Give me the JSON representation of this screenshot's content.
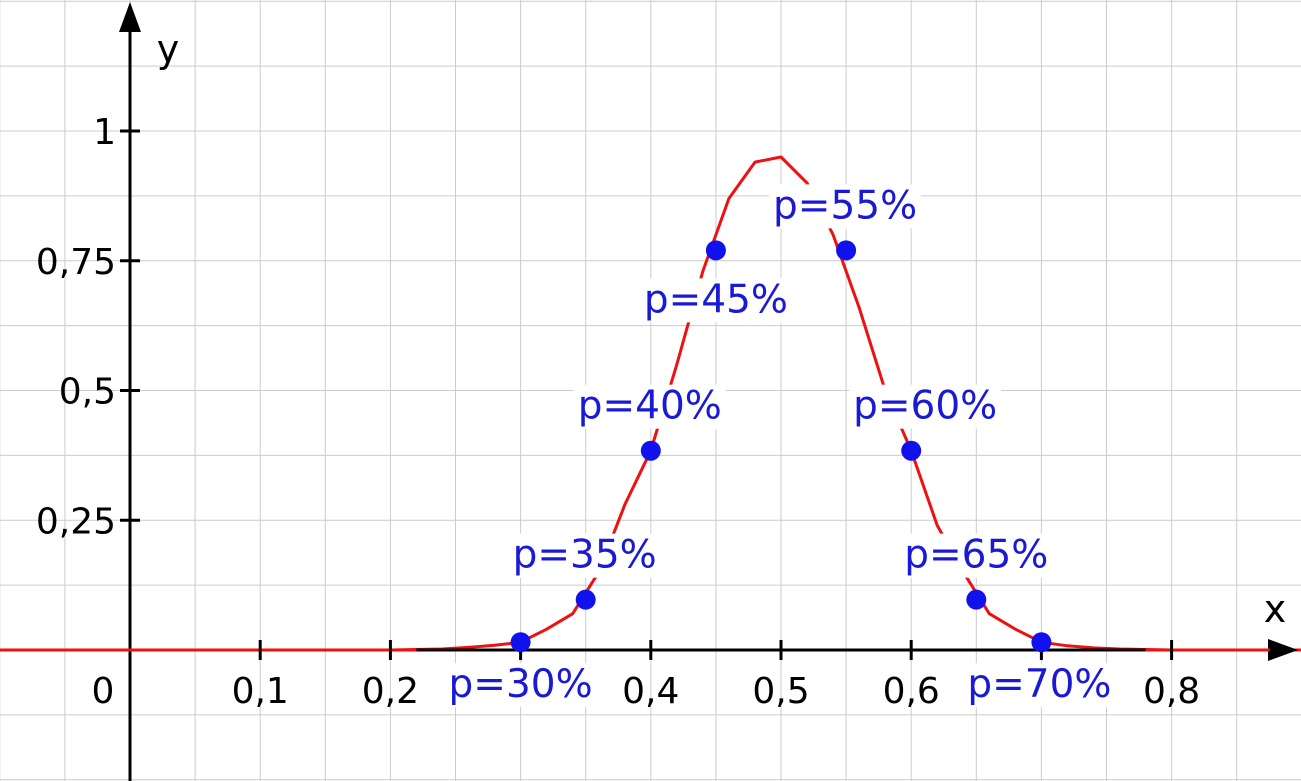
{
  "colors": {
    "curve": "#ee1111",
    "points": "#1111ee",
    "label_text": "#1a1ad6",
    "grid": "#cccccc",
    "axes": "#000000"
  },
  "chart_data": {
    "type": "line",
    "title": "",
    "xlabel": "x",
    "ylabel": "y",
    "xlim": [
      -0.1,
      0.9
    ],
    "ylim": [
      -0.25,
      1.25
    ],
    "grid": true,
    "origin_label": "0",
    "x_ticks": [
      {
        "value": 0.1,
        "label": "0,1"
      },
      {
        "value": 0.2,
        "label": "0,2"
      },
      {
        "value": 0.3,
        "label": "0,3"
      },
      {
        "value": 0.4,
        "label": "0,4"
      },
      {
        "value": 0.5,
        "label": "0,5"
      },
      {
        "value": 0.6,
        "label": "0,6"
      },
      {
        "value": 0.7,
        "label": "0,7"
      },
      {
        "value": 0.8,
        "label": "0,8"
      }
    ],
    "y_ticks": [
      {
        "value": 0.25,
        "label": "0,25"
      },
      {
        "value": 0.5,
        "label": "0,5"
      },
      {
        "value": 0.75,
        "label": "0,75"
      },
      {
        "value": 1,
        "label": "1"
      }
    ],
    "curve": {
      "x": [
        -0.1,
        0.2,
        0.22,
        0.24,
        0.26,
        0.28,
        0.3,
        0.32,
        0.34,
        0.36,
        0.38,
        0.4,
        0.42,
        0.44,
        0.46,
        0.48,
        0.5,
        0.52,
        0.54,
        0.56,
        0.58,
        0.6,
        0.62,
        0.64,
        0.66,
        0.68,
        0.7,
        0.72,
        0.74,
        0.76,
        0.78,
        0.8,
        0.9
      ],
      "y": [
        0,
        0,
        0.001,
        0.002,
        0.005,
        0.009,
        0.015,
        0.04,
        0.07,
        0.15,
        0.28,
        0.384,
        0.55,
        0.73,
        0.87,
        0.94,
        0.95,
        0.9,
        0.8,
        0.66,
        0.5,
        0.384,
        0.24,
        0.15,
        0.07,
        0.04,
        0.015,
        0.008,
        0.004,
        0.002,
        0.001,
        0,
        0
      ]
    },
    "points": [
      {
        "x": 0.3,
        "y": 0.015,
        "label": "p=30%"
      },
      {
        "x": 0.35,
        "y": 0.097,
        "label": "p=35%"
      },
      {
        "x": 0.4,
        "y": 0.384,
        "label": "p=40%"
      },
      {
        "x": 0.45,
        "y": 0.77,
        "label": "p=45%"
      },
      {
        "x": 0.55,
        "y": 0.77,
        "label": "p=55%"
      },
      {
        "x": 0.6,
        "y": 0.384,
        "label": "p=60%"
      },
      {
        "x": 0.65,
        "y": 0.097,
        "label": "p=65%"
      },
      {
        "x": 0.7,
        "y": 0.015,
        "label": "p=70%"
      }
    ]
  }
}
